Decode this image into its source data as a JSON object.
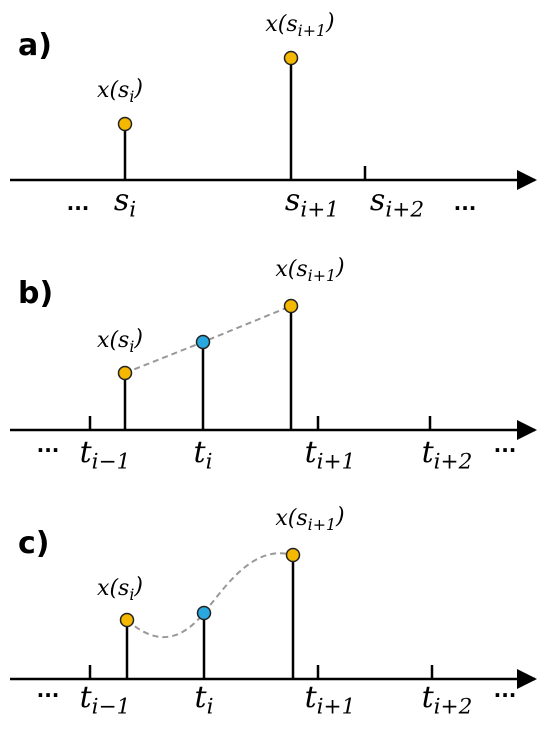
{
  "panels": [
    {
      "label": "a)",
      "point_labels": [
        {
          "main": "x(s",
          "sub": "i",
          "tail": ")"
        },
        {
          "main": "x(s",
          "sub": "i+1",
          "tail": ")"
        }
      ],
      "tick_labels": [
        {
          "main": "..."
        },
        {
          "main": "s",
          "sub": "i"
        },
        {
          "main": "s",
          "sub": "i+1"
        },
        {
          "main": "s",
          "sub": "i+2"
        },
        {
          "main": "..."
        }
      ]
    },
    {
      "label": "b)",
      "point_labels": [
        {
          "main": "x(s",
          "sub": "i",
          "tail": ")"
        },
        {
          "main": "x(s",
          "sub": "i+1",
          "tail": ")"
        }
      ],
      "tick_labels": [
        {
          "main": "..."
        },
        {
          "main": "t",
          "sub": "i−1"
        },
        {
          "main": "t",
          "sub": "i"
        },
        {
          "main": "t",
          "sub": "i+1"
        },
        {
          "main": "t",
          "sub": "i+2"
        },
        {
          "main": "..."
        }
      ]
    },
    {
      "label": "c)",
      "point_labels": [
        {
          "main": "x(s",
          "sub": "i",
          "tail": ")"
        },
        {
          "main": "x(s",
          "sub": "i+1",
          "tail": ")"
        }
      ],
      "tick_labels": [
        {
          "main": "..."
        },
        {
          "main": "t",
          "sub": "i−1"
        },
        {
          "main": "t",
          "sub": "i"
        },
        {
          "main": "t",
          "sub": "i+1"
        },
        {
          "main": "t",
          "sub": "i+2"
        },
        {
          "main": "..."
        }
      ]
    }
  ]
}
